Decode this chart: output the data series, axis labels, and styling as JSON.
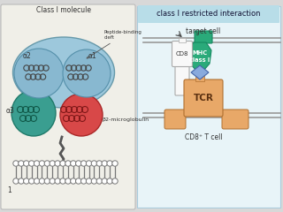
{
  "bg_color": "#d8d8d8",
  "left_panel_bg": "#f0efe8",
  "right_panel_bg": "#e8f4f8",
  "title_right": "class I restricted interaction",
  "title_bg": "#b8dde8",
  "label_class1": "Class I molecule",
  "label_peptide": "Peptide-binding\ncleft",
  "label_alpha2": "α2",
  "label_alpha1": "α1",
  "label_alpha3": "α3",
  "label_beta2": "β2-microglobulin",
  "label_target": "target cell",
  "label_cd8": "CD8",
  "label_mhc": "MHC\nclass I",
  "label_tcr": "TCR",
  "label_cd8t": "CD8⁺ T cell",
  "color_alpha12_big": "#9dc8dc",
  "color_alpha12_sub": "#88b8cc",
  "color_alpha3_fill": "#3a9e90",
  "color_beta2_fill": "#d84848",
  "color_mhc_fill": "#2aaa7a",
  "color_tcr_fill": "#e8a868",
  "color_cd8_fill": "#f8f8f8",
  "color_diamond": "#88aadd",
  "membrane_line": "#888888",
  "helix_color": "#444444",
  "text_color": "#333333",
  "arrow_color": "#555555"
}
